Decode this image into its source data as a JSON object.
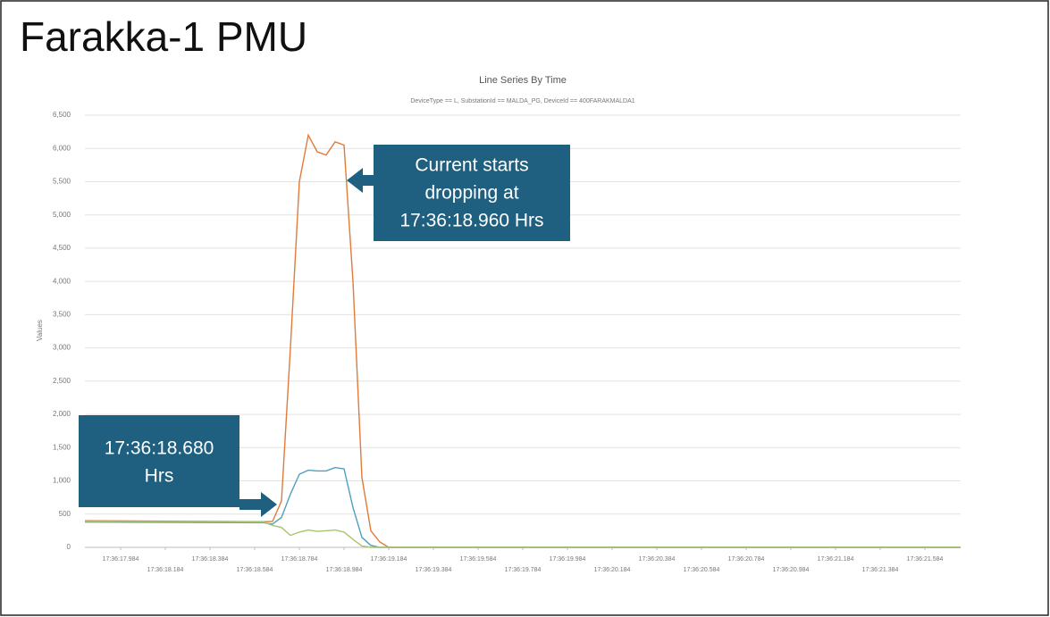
{
  "slide_title": "Farakka-1 PMU",
  "chart_data": {
    "type": "line",
    "title": "Line Series By Time",
    "subtitle": "DeviceType == L, SubstationId == MALDA_PG, DeviceId == 400FARAKMALDA1",
    "y_label": "Values",
    "x": [
      "17:36:17.824",
      "17:36:18.624",
      "17:36:18.664",
      "17:36:18.704",
      "17:36:18.744",
      "17:36:18.784",
      "17:36:18.824",
      "17:36:18.864",
      "17:36:18.904",
      "17:36:18.944",
      "17:36:18.984",
      "17:36:19.024",
      "17:36:19.064",
      "17:36:19.104",
      "17:36:19.144",
      "17:36:19.184",
      "17:36:19.224",
      "17:36:19.264",
      "17:36:21.744"
    ],
    "series": [
      {
        "color": "#e07b39",
        "values": [
          400,
          385,
          390,
          700,
          3000,
          5500,
          6200,
          5950,
          5900,
          6100,
          6050,
          4000,
          1050,
          250,
          80,
          0,
          0,
          0,
          0
        ]
      },
      {
        "color": "#4f9fc0",
        "values": [
          380,
          370,
          350,
          450,
          800,
          1100,
          1160,
          1150,
          1150,
          1200,
          1180,
          600,
          150,
          30,
          0,
          0,
          0,
          0,
          0
        ]
      },
      {
        "color": "#a9c46c",
        "values": [
          390,
          380,
          330,
          300,
          180,
          230,
          260,
          240,
          250,
          260,
          230,
          120,
          20,
          0,
          0,
          0,
          0,
          0,
          0
        ]
      }
    ],
    "xlim": [
      "17:36:17.824",
      "17:36:21.744"
    ],
    "xticks": [
      "17:36:17.984",
      "17:36:18.184",
      "17:36:18.384",
      "17:36:18.584",
      "17:36:18.784",
      "17:36:18.984",
      "17:36:19.184",
      "17:36:19.384",
      "17:36:19.584",
      "17:36:19.784",
      "17:36:19.984",
      "17:36:20.184",
      "17:36:20.384",
      "17:36:20.584",
      "17:36:20.784",
      "17:36:20.984",
      "17:36:21.184",
      "17:36:21.384",
      "17:36:21.584"
    ],
    "ylim": [
      0,
      6500
    ],
    "yticks": [
      0,
      500,
      {
        "value": 1000,
        "label": "1,000"
      },
      {
        "value": 1500,
        "label": "1,500"
      },
      {
        "value": 2000,
        "label": "2,000"
      },
      {
        "value": 2500,
        "label": "2,500"
      },
      {
        "value": 3000,
        "label": "3,000"
      },
      {
        "value": 3500,
        "label": "3,500"
      },
      {
        "value": 4000,
        "label": "4,000"
      },
      {
        "value": 4500,
        "label": "4,500"
      },
      {
        "value": 5000,
        "label": "5,000"
      },
      {
        "value": 5500,
        "label": "5,500"
      },
      {
        "value": 6000,
        "label": "6,000"
      },
      {
        "value": 6500,
        "label": "6,500"
      }
    ],
    "grid": true,
    "annotations": [
      {
        "lines": [
          "Current starts",
          "dropping at",
          "17:36:18.960 Hrs"
        ]
      },
      {
        "lines": [
          "17:36:18.680",
          "Hrs"
        ]
      }
    ]
  }
}
